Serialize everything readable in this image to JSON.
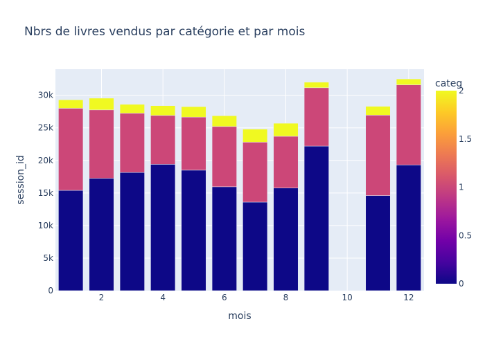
{
  "chart_data": {
    "type": "bar",
    "barmode": "stack",
    "title": "Nbrs de livres vendus par catégorie et par mois",
    "xlabel": "mois",
    "ylabel": "session_id",
    "x": [
      1,
      2,
      3,
      4,
      5,
      6,
      7,
      8,
      9,
      10,
      11,
      12
    ],
    "xlim": [
      0.5,
      12.5
    ],
    "ylim": [
      0,
      34000
    ],
    "x_ticks": [
      {
        "value": 2,
        "label": "2"
      },
      {
        "value": 4,
        "label": "4"
      },
      {
        "value": 6,
        "label": "6"
      },
      {
        "value": 8,
        "label": "8"
      },
      {
        "value": 10,
        "label": "10"
      },
      {
        "value": 12,
        "label": "12"
      }
    ],
    "y_ticks": [
      {
        "value": 0,
        "label": "0"
      },
      {
        "value": 5000,
        "label": "5k"
      },
      {
        "value": 10000,
        "label": "10k"
      },
      {
        "value": 15000,
        "label": "15k"
      },
      {
        "value": 20000,
        "label": "20k"
      },
      {
        "value": 25000,
        "label": "25k"
      },
      {
        "value": 30000,
        "label": "30k"
      }
    ],
    "grid": true,
    "series": [
      {
        "categ": 0,
        "color": "#0d0887",
        "values": [
          15400,
          17250,
          18150,
          19400,
          18500,
          15950,
          13600,
          15750,
          22200,
          0,
          14600,
          19300
        ]
      },
      {
        "categ": 1,
        "color": "#cc4778",
        "values": [
          12600,
          10500,
          9100,
          7500,
          8150,
          9250,
          9200,
          7950,
          8950,
          0,
          12350,
          12300
        ]
      },
      {
        "categ": 2,
        "color": "#f0f921",
        "values": [
          1300,
          1800,
          1350,
          1500,
          1600,
          1650,
          2000,
          2000,
          850,
          0,
          1350,
          900
        ]
      }
    ],
    "colorbar": {
      "title": "categ",
      "range": [
        0,
        2
      ],
      "ticks": [
        {
          "value": 0,
          "label": "0"
        },
        {
          "value": 0.5,
          "label": "0.5"
        },
        {
          "value": 1,
          "label": "1"
        },
        {
          "value": 1.5,
          "label": "1.5"
        },
        {
          "value": 2,
          "label": "2"
        }
      ],
      "colors": [
        "#0d0887",
        "#46039f",
        "#7201a8",
        "#9c179e",
        "#bd3786",
        "#d8576b",
        "#ed7953",
        "#fb9f3a",
        "#fdca26",
        "#f0f921"
      ]
    },
    "colors": {
      "plot_bg": "#e5ecf6",
      "grid": "#ffffff",
      "text": "#2a3f5f",
      "bar_outline": "#e5ecf6"
    }
  }
}
